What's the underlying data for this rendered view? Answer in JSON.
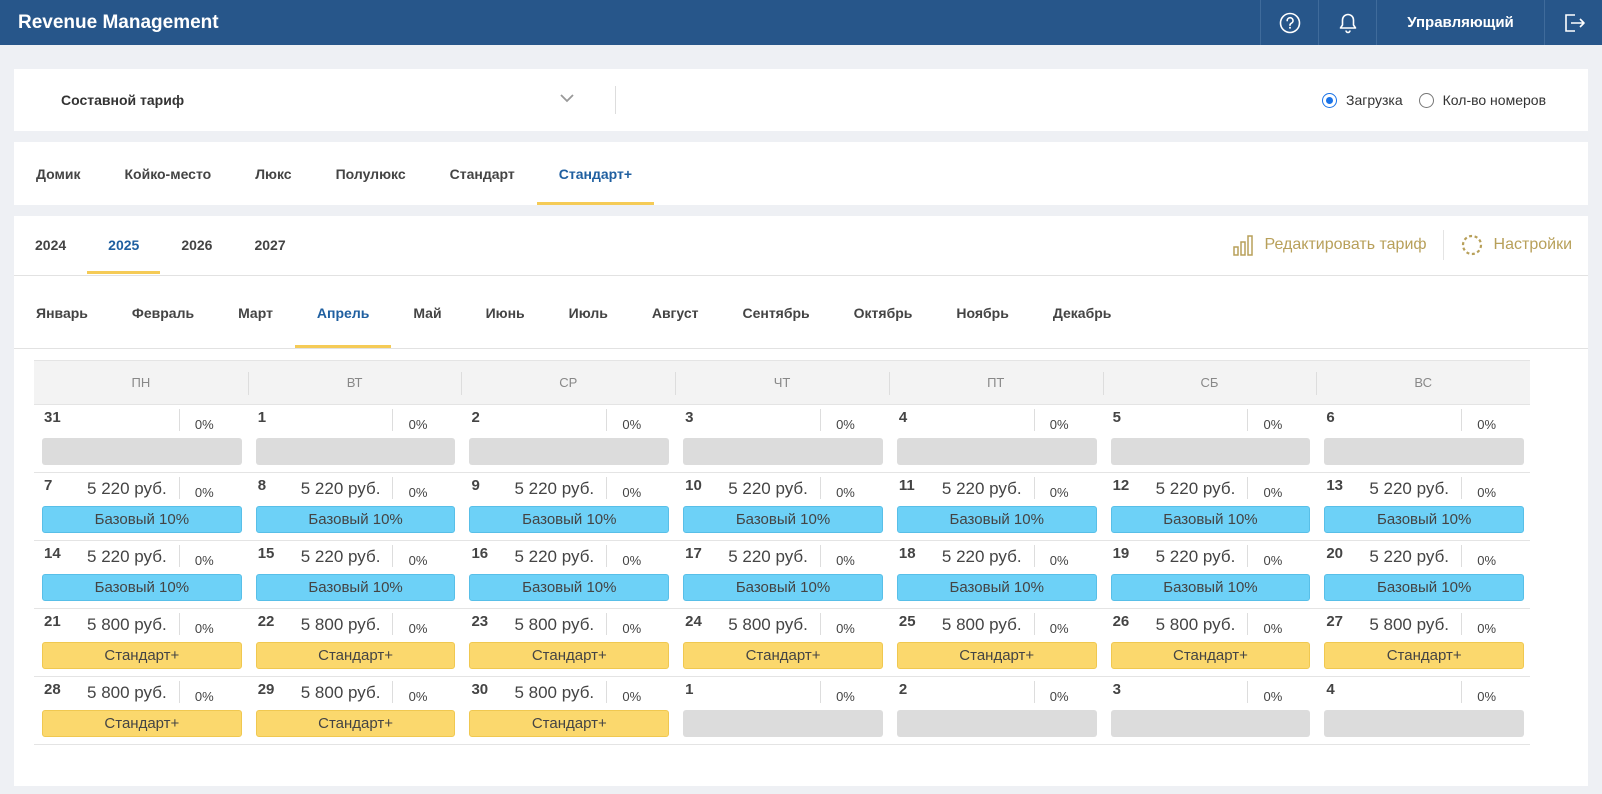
{
  "header": {
    "app_title": "Revenue Management",
    "user_label": "Управляющий",
    "help_icon": "help-circle-icon",
    "bell_icon": "bell-icon",
    "logout_icon": "logout-icon"
  },
  "tariff": {
    "selected": "Составной тариф",
    "radio_load": "Загрузка",
    "radio_rooms": "Кол-во номеров",
    "radio_checked": "load"
  },
  "room_tabs": [
    "Домик",
    "Койко-место",
    "Люкс",
    "Полулюкс",
    "Стандарт",
    "Стандарт+"
  ],
  "room_tab_active": 5,
  "years": [
    "2024",
    "2025",
    "2026",
    "2027"
  ],
  "year_active": 1,
  "actions": {
    "edit_tariff": "Редактировать тариф",
    "settings": "Настройки"
  },
  "months": [
    "Январь",
    "Февраль",
    "Март",
    "Апрель",
    "Май",
    "Июнь",
    "Июль",
    "Август",
    "Сентябрь",
    "Октябрь",
    "Ноябрь",
    "Декабрь"
  ],
  "month_active": 3,
  "weekdays": [
    "ПН",
    "ВТ",
    "СР",
    "ЧТ",
    "ПТ",
    "СБ",
    "ВС"
  ],
  "colors": {
    "header_bg": "#27568a",
    "accent": "#f5cb56",
    "tag_blue": "#6dd1f7",
    "tag_yellow": "#fbd86d",
    "tag_empty": "#dcdcdc",
    "action": "#b8a05a"
  },
  "calendar": [
    [
      {
        "day": "31",
        "price": "",
        "occ": "0%",
        "tag": "",
        "kind": "empty"
      },
      {
        "day": "1",
        "price": "",
        "occ": "0%",
        "tag": "",
        "kind": "empty"
      },
      {
        "day": "2",
        "price": "",
        "occ": "0%",
        "tag": "",
        "kind": "empty"
      },
      {
        "day": "3",
        "price": "",
        "occ": "0%",
        "tag": "",
        "kind": "empty"
      },
      {
        "day": "4",
        "price": "",
        "occ": "0%",
        "tag": "",
        "kind": "empty"
      },
      {
        "day": "5",
        "price": "",
        "occ": "0%",
        "tag": "",
        "kind": "empty"
      },
      {
        "day": "6",
        "price": "",
        "occ": "0%",
        "tag": "",
        "kind": "empty"
      }
    ],
    [
      {
        "day": "7",
        "price": "5 220 руб.",
        "occ": "0%",
        "tag": "Базовый 10%",
        "kind": "blue"
      },
      {
        "day": "8",
        "price": "5 220 руб.",
        "occ": "0%",
        "tag": "Базовый 10%",
        "kind": "blue"
      },
      {
        "day": "9",
        "price": "5 220 руб.",
        "occ": "0%",
        "tag": "Базовый 10%",
        "kind": "blue"
      },
      {
        "day": "10",
        "price": "5 220 руб.",
        "occ": "0%",
        "tag": "Базовый 10%",
        "kind": "blue"
      },
      {
        "day": "11",
        "price": "5 220 руб.",
        "occ": "0%",
        "tag": "Базовый 10%",
        "kind": "blue"
      },
      {
        "day": "12",
        "price": "5 220 руб.",
        "occ": "0%",
        "tag": "Базовый 10%",
        "kind": "blue"
      },
      {
        "day": "13",
        "price": "5 220 руб.",
        "occ": "0%",
        "tag": "Базовый 10%",
        "kind": "blue"
      }
    ],
    [
      {
        "day": "14",
        "price": "5 220 руб.",
        "occ": "0%",
        "tag": "Базовый 10%",
        "kind": "blue"
      },
      {
        "day": "15",
        "price": "5 220 руб.",
        "occ": "0%",
        "tag": "Базовый 10%",
        "kind": "blue"
      },
      {
        "day": "16",
        "price": "5 220 руб.",
        "occ": "0%",
        "tag": "Базовый 10%",
        "kind": "blue"
      },
      {
        "day": "17",
        "price": "5 220 руб.",
        "occ": "0%",
        "tag": "Базовый 10%",
        "kind": "blue"
      },
      {
        "day": "18",
        "price": "5 220 руб.",
        "occ": "0%",
        "tag": "Базовый 10%",
        "kind": "blue"
      },
      {
        "day": "19",
        "price": "5 220 руб.",
        "occ": "0%",
        "tag": "Базовый 10%",
        "kind": "blue"
      },
      {
        "day": "20",
        "price": "5 220 руб.",
        "occ": "0%",
        "tag": "Базовый 10%",
        "kind": "blue"
      }
    ],
    [
      {
        "day": "21",
        "price": "5 800 руб.",
        "occ": "0%",
        "tag": "Стандарт+",
        "kind": "yellow"
      },
      {
        "day": "22",
        "price": "5 800 руб.",
        "occ": "0%",
        "tag": "Стандарт+",
        "kind": "yellow"
      },
      {
        "day": "23",
        "price": "5 800 руб.",
        "occ": "0%",
        "tag": "Стандарт+",
        "kind": "yellow"
      },
      {
        "day": "24",
        "price": "5 800 руб.",
        "occ": "0%",
        "tag": "Стандарт+",
        "kind": "yellow"
      },
      {
        "day": "25",
        "price": "5 800 руб.",
        "occ": "0%",
        "tag": "Стандарт+",
        "kind": "yellow"
      },
      {
        "day": "26",
        "price": "5 800 руб.",
        "occ": "0%",
        "tag": "Стандарт+",
        "kind": "yellow"
      },
      {
        "day": "27",
        "price": "5 800 руб.",
        "occ": "0%",
        "tag": "Стандарт+",
        "kind": "yellow"
      }
    ],
    [
      {
        "day": "28",
        "price": "5 800 руб.",
        "occ": "0%",
        "tag": "Стандарт+",
        "kind": "yellow"
      },
      {
        "day": "29",
        "price": "5 800 руб.",
        "occ": "0%",
        "tag": "Стандарт+",
        "kind": "yellow"
      },
      {
        "day": "30",
        "price": "5 800 руб.",
        "occ": "0%",
        "tag": "Стандарт+",
        "kind": "yellow"
      },
      {
        "day": "1",
        "price": "",
        "occ": "0%",
        "tag": "",
        "kind": "empty"
      },
      {
        "day": "2",
        "price": "",
        "occ": "0%",
        "tag": "",
        "kind": "empty"
      },
      {
        "day": "3",
        "price": "",
        "occ": "0%",
        "tag": "",
        "kind": "empty"
      },
      {
        "day": "4",
        "price": "",
        "occ": "0%",
        "tag": "",
        "kind": "empty"
      }
    ]
  ]
}
